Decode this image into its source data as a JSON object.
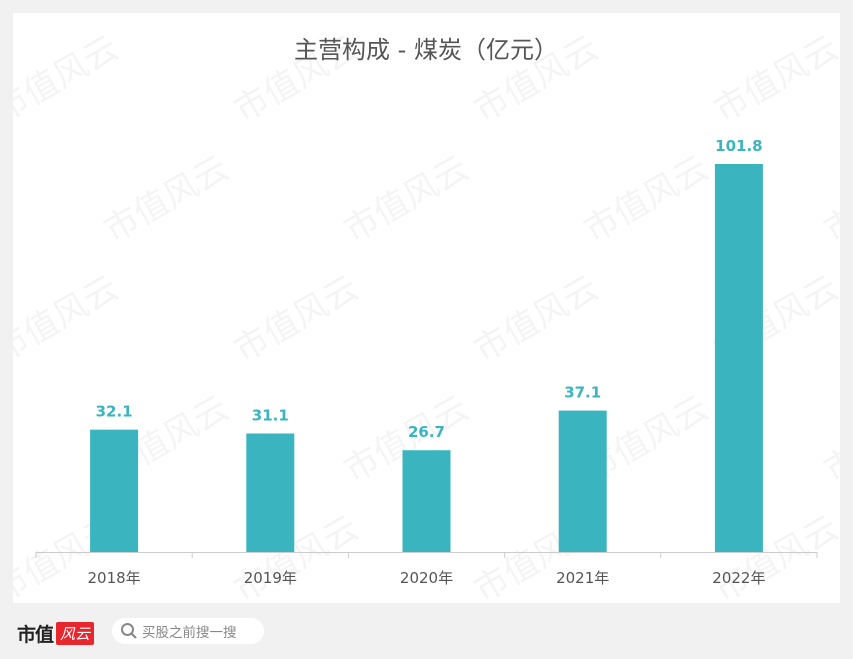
{
  "chart_data": {
    "type": "bar",
    "title": "主营构成 - 煤炭（亿元）",
    "categories": [
      "2018年",
      "2019年",
      "2020年",
      "2021年",
      "2022年"
    ],
    "values": [
      32.1,
      31.1,
      26.7,
      37.1,
      101.8
    ],
    "value_labels": [
      "32.1",
      "31.1",
      "26.7",
      "37.1",
      "101.8"
    ],
    "xlabel": "",
    "ylabel": "",
    "ylim": [
      0,
      101.8
    ],
    "grid": false,
    "bar_color": "#3ab5c0",
    "label_color": "#3ab5c0"
  },
  "watermark": "市值风云",
  "footer": {
    "logo_text": "市值",
    "logo_red": "风云",
    "search_placeholder": "买股之前搜一搜",
    "search_icon": "search-icon"
  }
}
